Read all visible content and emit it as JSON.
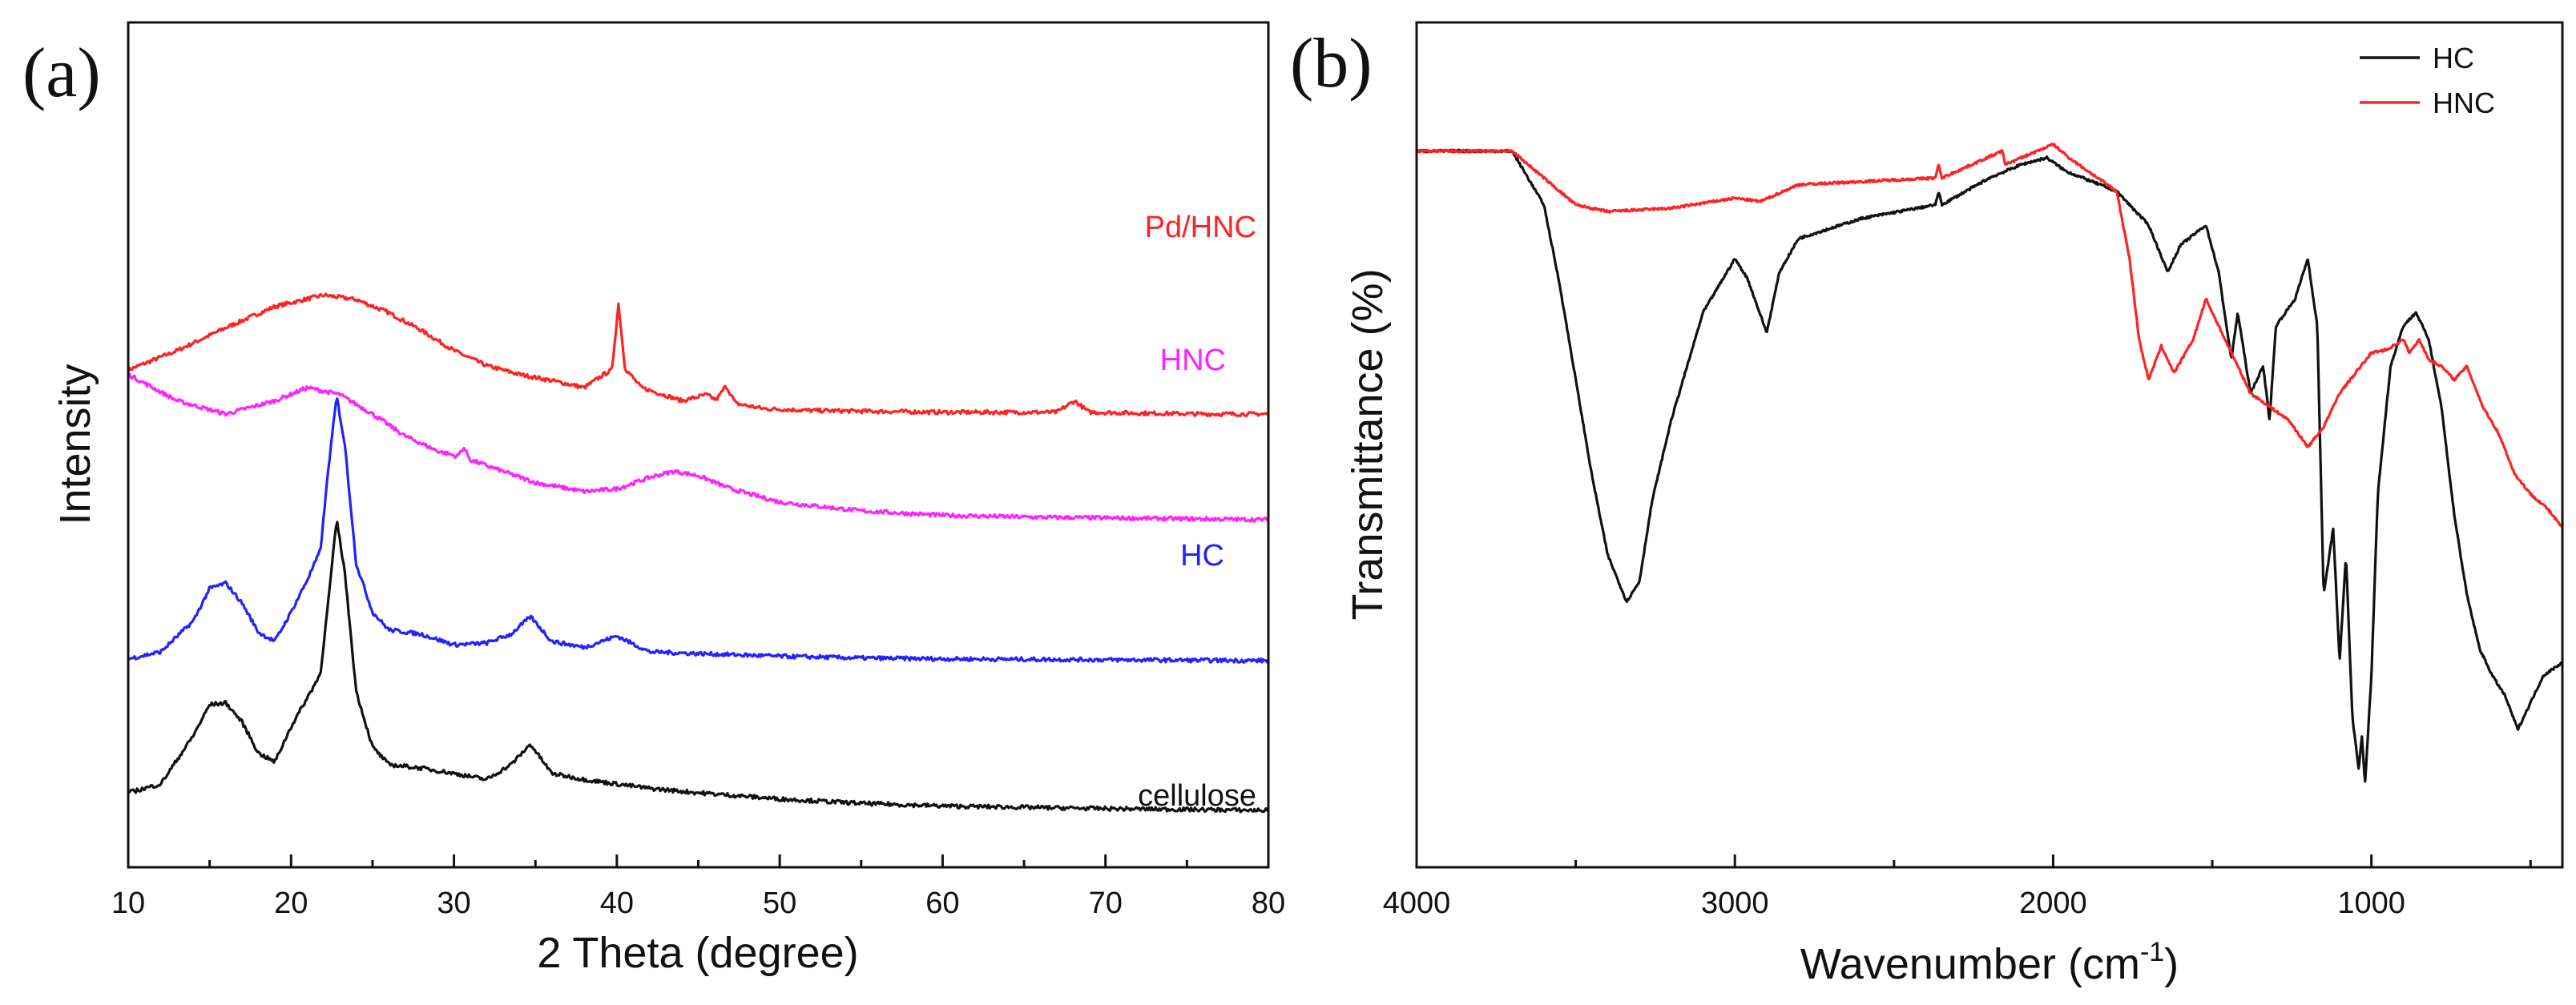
{
  "chart_data": [
    {
      "panel": "(a)",
      "type": "line",
      "xlabel": "2 Theta (degree)",
      "ylabel": "Intensity",
      "xlim": [
        10,
        80
      ],
      "xticks": [
        "10",
        "20",
        "30",
        "40",
        "50",
        "60",
        "70",
        "80"
      ],
      "series": [
        {
          "name": "Pd/HNC",
          "color": "#ff2222",
          "offset": 4.5,
          "x": [
            10,
            13,
            16,
            19,
            22,
            24,
            26,
            28,
            30,
            32,
            34,
            36,
            38,
            39.2,
            39.7,
            40.1,
            40.5,
            41.5,
            44,
            45.5,
            46.1,
            46.7,
            47.3,
            49,
            52,
            56,
            60,
            64,
            67,
            68.1,
            69,
            72,
            76,
            80
          ],
          "y": [
            0.5,
            0.72,
            0.98,
            1.22,
            1.35,
            1.3,
            1.15,
            0.95,
            0.72,
            0.55,
            0.45,
            0.38,
            0.3,
            0.45,
            0.5,
            1.25,
            0.52,
            0.3,
            0.15,
            0.22,
            0.16,
            0.32,
            0.12,
            0.06,
            0.04,
            0.03,
            0.02,
            0.02,
            0.02,
            0.15,
            0.02,
            0.01,
            0.0,
            0.0
          ]
        },
        {
          "name": "HNC",
          "color": "#ff22ff",
          "offset": 3.3,
          "x": [
            10,
            13,
            16,
            19,
            21,
            23,
            25,
            27,
            29,
            30.2,
            30.6,
            31,
            33,
            35,
            38,
            40,
            42,
            43.5,
            45,
            47,
            50,
            55,
            60,
            65,
            70,
            75,
            80
          ],
          "y": [
            1.65,
            1.35,
            1.2,
            1.35,
            1.5,
            1.42,
            1.2,
            0.95,
            0.78,
            0.72,
            0.82,
            0.68,
            0.55,
            0.42,
            0.32,
            0.35,
            0.48,
            0.55,
            0.5,
            0.35,
            0.2,
            0.1,
            0.05,
            0.03,
            0.02,
            0.01,
            0.0
          ]
        },
        {
          "name": "HC",
          "color": "#2222ff",
          "offset": 1.7,
          "x": [
            10,
            12,
            14,
            15,
            16,
            17,
            18,
            19,
            20,
            21,
            21.8,
            22.3,
            22.8,
            23.3,
            24,
            25,
            26,
            28,
            30,
            32,
            33.5,
            34.7,
            36,
            38,
            40,
            42,
            45,
            50,
            55,
            60,
            70,
            80
          ],
          "y": [
            0.02,
            0.1,
            0.45,
            0.82,
            0.88,
            0.65,
            0.32,
            0.22,
            0.55,
            0.92,
            1.25,
            2.2,
            3.0,
            2.45,
            1.1,
            0.55,
            0.35,
            0.3,
            0.18,
            0.2,
            0.3,
            0.5,
            0.22,
            0.15,
            0.28,
            0.1,
            0.08,
            0.05,
            0.03,
            0.02,
            0.01,
            0.0
          ]
        },
        {
          "name": "cellulose",
          "color": "#111111",
          "offset": 0.0,
          "x": [
            10,
            12,
            14,
            15,
            16,
            17,
            18,
            19,
            20,
            21,
            21.8,
            22.3,
            22.8,
            23.3,
            24,
            25,
            26,
            28,
            30,
            32,
            33.5,
            34.7,
            36,
            38,
            40,
            42,
            45,
            50,
            55,
            60,
            70,
            80
          ],
          "y": [
            0.2,
            0.3,
            0.85,
            1.2,
            1.22,
            1.0,
            0.65,
            0.55,
            0.95,
            1.28,
            1.55,
            2.4,
            3.3,
            2.7,
            1.35,
            0.72,
            0.52,
            0.48,
            0.42,
            0.35,
            0.52,
            0.75,
            0.42,
            0.35,
            0.3,
            0.25,
            0.2,
            0.13,
            0.08,
            0.05,
            0.02,
            0.0
          ]
        }
      ]
    },
    {
      "panel": "(b)",
      "type": "line",
      "xlabel": "Wavenumber (cm",
      "xlabel_superscript": "-1",
      "xlabel_suffix": ")",
      "ylabel": "Transmittance (%)",
      "xlim": [
        4000,
        400
      ],
      "xticks": [
        "4000",
        "3000",
        "2000",
        "1000"
      ],
      "legend": [
        "HC",
        "HNC"
      ],
      "legend_position": "top-right",
      "series": [
        {
          "name": "HC",
          "color": "#111111",
          "x": [
            4000,
            3700,
            3600,
            3550,
            3500,
            3450,
            3400,
            3340,
            3300,
            3260,
            3200,
            3100,
            3000,
            2960,
            2900,
            2860,
            2800,
            2600,
            2370,
            2360,
            2350,
            2200,
            2100,
            2020,
            1960,
            1800,
            1700,
            1640,
            1600,
            1520,
            1480,
            1440,
            1420,
            1380,
            1340,
            1320,
            1300,
            1240,
            1200,
            1170,
            1150,
            1120,
            1100,
            1080,
            1060,
            1040,
            1030,
            1020,
            1000,
            980,
            940,
            900,
            860,
            820,
            780,
            740,
            700,
            660,
            620,
            580,
            540,
            500,
            460,
            400
          ],
          "y": [
            96,
            96,
            88,
            76,
            62,
            48,
            36,
            29,
            32,
            44,
            56,
            72,
            80,
            77,
            69,
            78,
            83,
            86,
            88,
            90,
            88,
            92,
            94,
            95,
            93,
            90,
            85,
            78,
            82,
            85,
            78,
            65,
            72,
            60,
            64,
            56,
            70,
            74,
            80,
            70,
            30,
            40,
            20,
            36,
            12,
            4,
            9,
            2,
            18,
            45,
            64,
            70,
            72,
            68,
            58,
            42,
            30,
            22,
            18,
            15,
            10,
            14,
            18,
            20
          ]
        },
        {
          "name": "HNC",
          "color": "#ff2222",
          "x": [
            4000,
            3700,
            3600,
            3500,
            3400,
            3200,
            3000,
            2920,
            2800,
            2370,
            2360,
            2350,
            2160,
            2150,
            2050,
            2000,
            1950,
            1800,
            1760,
            1730,
            1700,
            1660,
            1620,
            1560,
            1520,
            1480,
            1440,
            1380,
            1320,
            1260,
            1200,
            1150,
            1100,
            1050,
            1000,
            950,
            900,
            880,
            850,
            820,
            780,
            740,
            700,
            650,
            600,
            550,
            500,
            450,
            400
          ],
          "y": [
            96,
            96,
            92,
            88,
            87,
            87.5,
            89,
            88.5,
            91,
            92,
            94,
            92,
            96,
            94,
            96,
            97,
            95,
            90,
            80,
            68,
            62,
            67,
            63,
            68,
            74,
            70,
            66,
            60,
            58,
            56,
            52,
            55,
            60,
            63,
            66,
            66.5,
            68,
            66,
            68,
            65,
            64,
            62,
            64,
            58,
            54,
            48,
            45,
            43,
            40
          ]
        }
      ]
    }
  ]
}
